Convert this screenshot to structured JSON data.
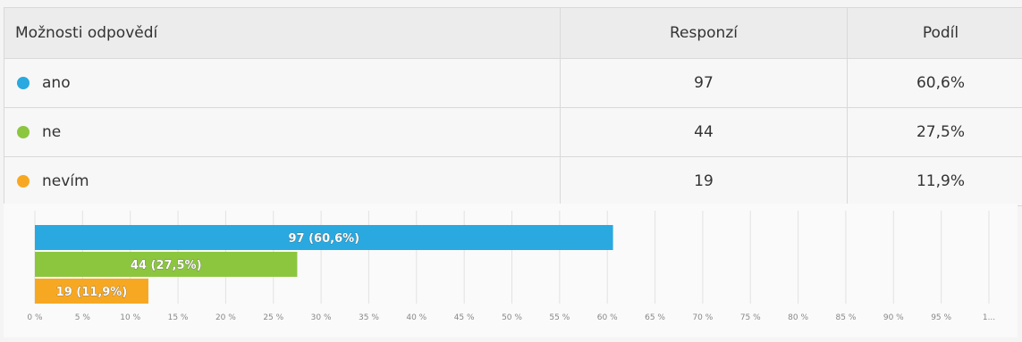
{
  "table": {
    "headers": {
      "option": "Možnosti odpovědí",
      "responses": "Responzí",
      "share": "Podíl"
    },
    "rows": [
      {
        "label": "ano",
        "responses": "97",
        "share": "60,6%",
        "color": "#29a9e0"
      },
      {
        "label": "ne",
        "responses": "44",
        "share": "27,5%",
        "color": "#8cc63f"
      },
      {
        "label": "nevím",
        "responses": "19",
        "share": "11,9%",
        "color": "#f7a823"
      }
    ]
  },
  "chart_data": {
    "type": "bar",
    "orientation": "horizontal",
    "categories": [
      "ano",
      "ne",
      "nevím"
    ],
    "values": [
      60.6,
      27.5,
      11.9
    ],
    "data_labels": [
      "97 (60,6%)",
      "44 (27,5%)",
      "19 (11,9%)"
    ],
    "colors": [
      "#29a9e0",
      "#8cc63f",
      "#f7a823"
    ],
    "xlim": [
      0,
      100
    ],
    "xticks": [
      "0 %",
      "5 %",
      "10 %",
      "15 %",
      "20 %",
      "25 %",
      "30 %",
      "35 %",
      "40 %",
      "45 %",
      "50 %",
      "55 %",
      "60 %",
      "65 %",
      "70 %",
      "75 %",
      "80 %",
      "85 %",
      "90 %",
      "95 %",
      "1..."
    ],
    "grid": true
  }
}
